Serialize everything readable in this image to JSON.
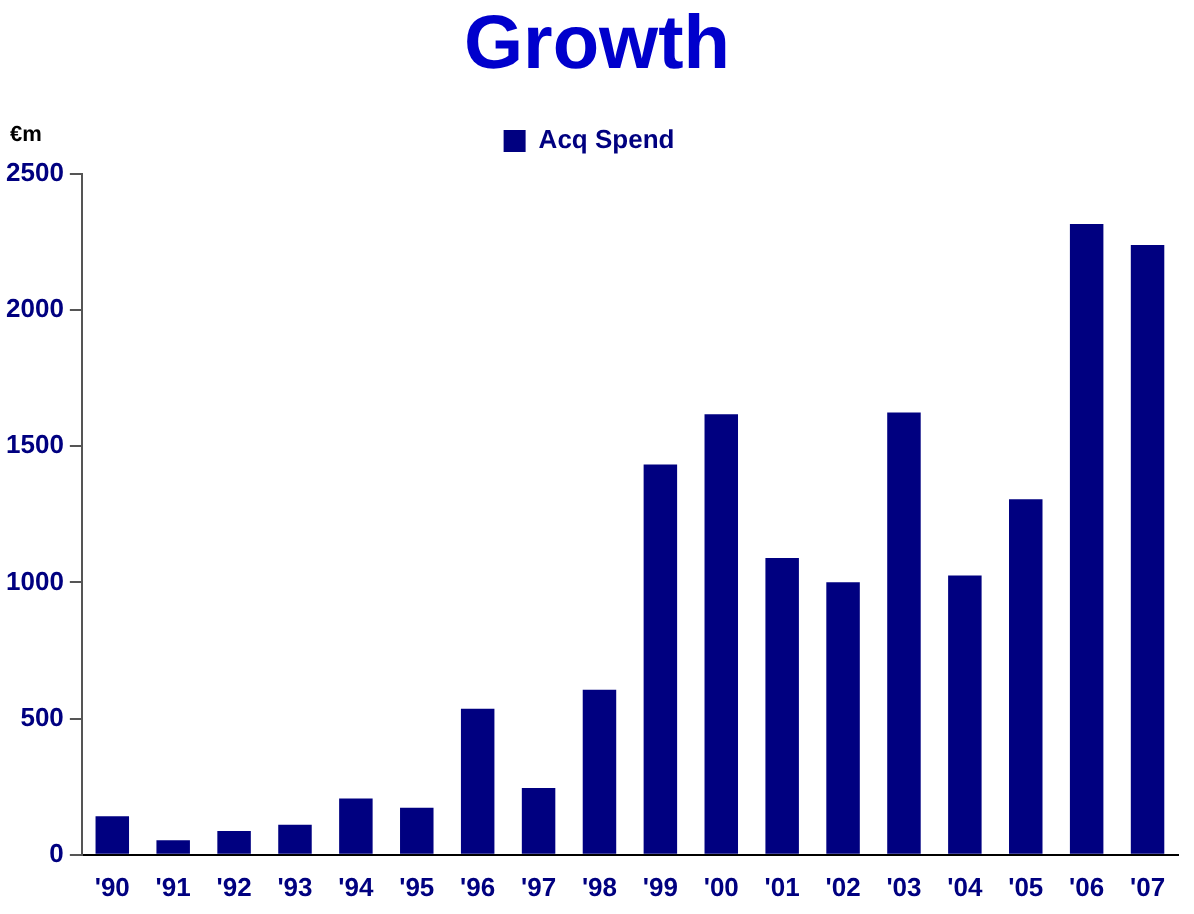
{
  "chart_data": {
    "type": "bar",
    "title": "Growth",
    "ylabel": "€m",
    "categories": [
      "'90",
      "'91",
      "'92",
      "'93",
      "'94",
      "'95",
      "'96",
      "'97",
      "'98",
      "'99",
      "'00",
      "'01",
      "'02",
      "'03",
      "'04",
      "'05",
      "'06",
      "'07"
    ],
    "series": [
      {
        "name": "Acq Spend",
        "color": "#000080",
        "values": [
          142,
          53,
          87,
          110,
          207,
          173,
          536,
          245,
          606,
          1433,
          1618,
          1090,
          1001,
          1624,
          1026,
          1306,
          2316,
          2239
        ]
      }
    ],
    "ylim": [
      0,
      2500
    ],
    "yticks": [
      0,
      500,
      1000,
      1500,
      2000,
      2500
    ],
    "grid": false,
    "legend": "top"
  }
}
